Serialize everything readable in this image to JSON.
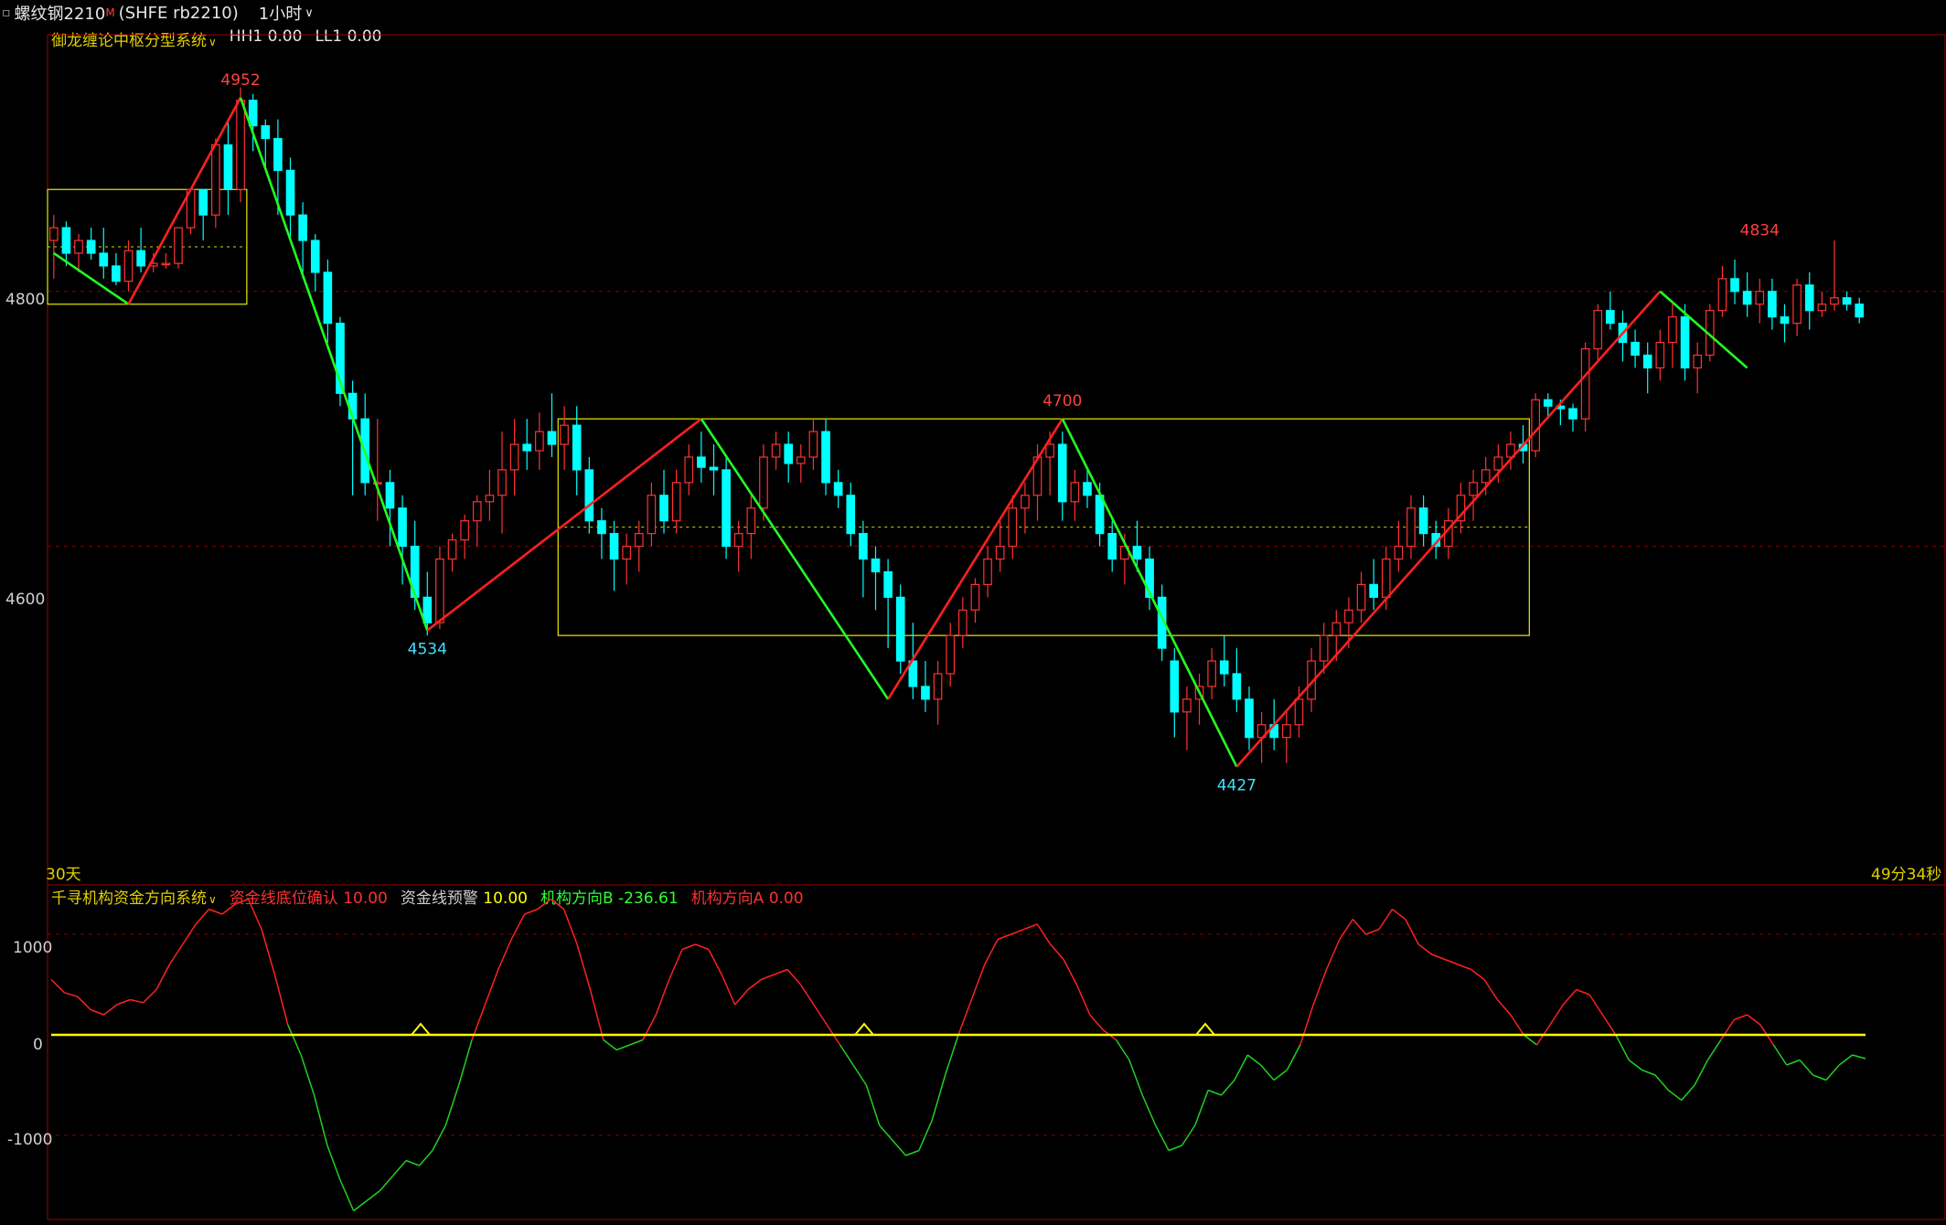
{
  "header": {
    "symbol": "螺纹钢2210",
    "badge": "M",
    "exchange_code": "(SHFE rb2210)",
    "period": "1小时"
  },
  "main_panel": {
    "indicator_name": "御龙缠论中枢分型系统",
    "hh1": "HH1 0.00",
    "ll1": "LL1 0.00",
    "axis_label_4800": "4800",
    "axis_label_4600": "4600",
    "range_label": "30天",
    "countdown": "49分34秒",
    "peak_labels": [
      "4952",
      "4534",
      "4700",
      "4427",
      "4834"
    ]
  },
  "sub_panel": {
    "indicator_name": "千寻机构资金方向系统",
    "items": [
      {
        "label": "资金线底位确认",
        "value": "10.00"
      },
      {
        "label": "资金线预警",
        "value": "10.00"
      },
      {
        "label": "机构方向B",
        "value": "-236.61"
      },
      {
        "label": "机构方向A",
        "value": "0.00"
      }
    ],
    "axis_labels": [
      "1000",
      "0",
      "-1000"
    ]
  },
  "colors": {
    "up": "#ff3232",
    "down": "#00ffff",
    "zigzag_up": "#ff2020",
    "zigzag_down": "#20ff20",
    "box": "#d8d800",
    "grid": "#8b0000",
    "flow_positive": "#ff2020",
    "flow_negative": "#20d020",
    "zero_line": "#ffff00"
  },
  "chart_data": [
    {
      "type": "candlestick",
      "title": "螺纹钢2210 (SHFE rb2210) 1小时",
      "ylim": [
        4340,
        5000
      ],
      "y_ticks": [
        4600,
        4800
      ],
      "ohlc": [
        [
          4840,
          4860,
          4810,
          4850
        ],
        [
          4850,
          4855,
          4820,
          4830
        ],
        [
          4830,
          4845,
          4815,
          4840
        ],
        [
          4840,
          4850,
          4825,
          4830
        ],
        [
          4830,
          4850,
          4810,
          4820
        ],
        [
          4820,
          4830,
          4805,
          4808
        ],
        [
          4808,
          4840,
          4800,
          4832
        ],
        [
          4832,
          4850,
          4815,
          4820
        ],
        [
          4820,
          4830,
          4815,
          4822
        ],
        [
          4822,
          4830,
          4818,
          4822
        ],
        [
          4822,
          4850,
          4818,
          4850
        ],
        [
          4850,
          4880,
          4845,
          4880
        ],
        [
          4880,
          4880,
          4840,
          4860
        ],
        [
          4860,
          4920,
          4850,
          4915
        ],
        [
          4915,
          4935,
          4860,
          4880
        ],
        [
          4880,
          4960,
          4870,
          4950
        ],
        [
          4950,
          4955,
          4910,
          4930
        ],
        [
          4930,
          4935,
          4895,
          4920
        ],
        [
          4920,
          4935,
          4860,
          4895
        ],
        [
          4895,
          4905,
          4840,
          4860
        ],
        [
          4860,
          4870,
          4810,
          4840
        ],
        [
          4840,
          4845,
          4800,
          4815
        ],
        [
          4815,
          4825,
          4760,
          4775
        ],
        [
          4775,
          4780,
          4710,
          4720
        ],
        [
          4720,
          4730,
          4640,
          4700
        ],
        [
          4700,
          4720,
          4640,
          4650
        ],
        [
          4650,
          4700,
          4620,
          4650
        ],
        [
          4650,
          4660,
          4600,
          4630
        ],
        [
          4630,
          4640,
          4570,
          4600
        ],
        [
          4600,
          4620,
          4550,
          4560
        ],
        [
          4560,
          4580,
          4530,
          4540
        ],
        [
          4540,
          4600,
          4535,
          4590
        ],
        [
          4590,
          4610,
          4580,
          4605
        ],
        [
          4605,
          4625,
          4590,
          4620
        ],
        [
          4620,
          4640,
          4600,
          4635
        ],
        [
          4635,
          4660,
          4620,
          4640
        ],
        [
          4640,
          4690,
          4610,
          4660
        ],
        [
          4660,
          4700,
          4640,
          4680
        ],
        [
          4680,
          4700,
          4660,
          4675
        ],
        [
          4675,
          4705,
          4660,
          4690
        ],
        [
          4690,
          4720,
          4670,
          4680
        ],
        [
          4680,
          4710,
          4660,
          4695
        ],
        [
          4695,
          4710,
          4640,
          4660
        ],
        [
          4660,
          4670,
          4610,
          4620
        ],
        [
          4620,
          4630,
          4590,
          4610
        ],
        [
          4610,
          4620,
          4565,
          4590
        ],
        [
          4590,
          4610,
          4570,
          4600
        ],
        [
          4600,
          4620,
          4580,
          4610
        ],
        [
          4610,
          4650,
          4600,
          4640
        ],
        [
          4640,
          4660,
          4610,
          4620
        ],
        [
          4620,
          4660,
          4610,
          4650
        ],
        [
          4650,
          4680,
          4640,
          4670
        ],
        [
          4670,
          4690,
          4650,
          4662
        ],
        [
          4662,
          4680,
          4640,
          4660
        ],
        [
          4660,
          4670,
          4590,
          4600
        ],
        [
          4600,
          4620,
          4580,
          4610
        ],
        [
          4610,
          4640,
          4590,
          4630
        ],
        [
          4630,
          4680,
          4620,
          4670
        ],
        [
          4670,
          4690,
          4660,
          4680
        ],
        [
          4680,
          4690,
          4650,
          4665
        ],
        [
          4665,
          4680,
          4650,
          4670
        ],
        [
          4670,
          4700,
          4660,
          4690
        ],
        [
          4690,
          4700,
          4640,
          4650
        ],
        [
          4650,
          4660,
          4630,
          4640
        ],
        [
          4640,
          4650,
          4600,
          4610
        ],
        [
          4610,
          4620,
          4560,
          4590
        ],
        [
          4590,
          4600,
          4550,
          4580
        ],
        [
          4580,
          4590,
          4520,
          4560
        ],
        [
          4560,
          4570,
          4500,
          4510
        ],
        [
          4510,
          4540,
          4480,
          4490
        ],
        [
          4490,
          4510,
          4470,
          4480
        ],
        [
          4480,
          4510,
          4460,
          4500
        ],
        [
          4500,
          4540,
          4490,
          4530
        ],
        [
          4530,
          4560,
          4520,
          4550
        ],
        [
          4550,
          4575,
          4540,
          4570
        ],
        [
          4570,
          4600,
          4560,
          4590
        ],
        [
          4590,
          4620,
          4580,
          4600
        ],
        [
          4600,
          4640,
          4590,
          4630
        ],
        [
          4630,
          4650,
          4610,
          4640
        ],
        [
          4640,
          4680,
          4620,
          4670
        ],
        [
          4670,
          4690,
          4640,
          4680
        ],
        [
          4680,
          4690,
          4620,
          4635
        ],
        [
          4635,
          4660,
          4620,
          4650
        ],
        [
          4650,
          4660,
          4630,
          4640
        ],
        [
          4640,
          4650,
          4600,
          4610
        ],
        [
          4610,
          4620,
          4580,
          4590
        ],
        [
          4590,
          4610,
          4570,
          4600
        ],
        [
          4600,
          4620,
          4580,
          4590
        ],
        [
          4590,
          4600,
          4550,
          4560
        ],
        [
          4560,
          4570,
          4510,
          4520
        ],
        [
          4510,
          4520,
          4450,
          4470
        ],
        [
          4470,
          4490,
          4440,
          4480
        ],
        [
          4480,
          4500,
          4460,
          4490
        ],
        [
          4490,
          4520,
          4480,
          4510
        ],
        [
          4510,
          4530,
          4490,
          4500
        ],
        [
          4500,
          4520,
          4470,
          4480
        ],
        [
          4480,
          4490,
          4440,
          4450
        ],
        [
          4450,
          4470,
          4430,
          4460
        ],
        [
          4460,
          4480,
          4440,
          4450
        ],
        [
          4450,
          4470,
          4430,
          4460
        ],
        [
          4460,
          4490,
          4450,
          4480
        ],
        [
          4480,
          4520,
          4470,
          4510
        ],
        [
          4510,
          4540,
          4500,
          4530
        ],
        [
          4530,
          4550,
          4510,
          4540
        ],
        [
          4540,
          4560,
          4520,
          4550
        ],
        [
          4550,
          4580,
          4540,
          4570
        ],
        [
          4570,
          4590,
          4550,
          4560
        ],
        [
          4560,
          4600,
          4550,
          4590
        ],
        [
          4590,
          4620,
          4580,
          4600
        ],
        [
          4600,
          4640,
          4590,
          4630
        ],
        [
          4630,
          4640,
          4600,
          4610
        ],
        [
          4610,
          4620,
          4590,
          4600
        ],
        [
          4600,
          4630,
          4590,
          4620
        ],
        [
          4620,
          4650,
          4610,
          4640
        ],
        [
          4640,
          4660,
          4620,
          4650
        ],
        [
          4650,
          4670,
          4640,
          4660
        ],
        [
          4660,
          4680,
          4650,
          4670
        ],
        [
          4670,
          4690,
          4660,
          4680
        ],
        [
          4680,
          4695,
          4665,
          4675
        ],
        [
          4675,
          4720,
          4670,
          4715
        ],
        [
          4715,
          4720,
          4700,
          4710
        ],
        [
          4710,
          4715,
          4695,
          4708
        ],
        [
          4708,
          4712,
          4690,
          4700
        ],
        [
          4700,
          4760,
          4690,
          4755
        ],
        [
          4755,
          4790,
          4745,
          4785
        ],
        [
          4785,
          4800,
          4770,
          4775
        ],
        [
          4775,
          4785,
          4745,
          4760
        ],
        [
          4760,
          4770,
          4740,
          4750
        ],
        [
          4750,
          4760,
          4720,
          4740
        ],
        [
          4740,
          4770,
          4730,
          4760
        ],
        [
          4760,
          4790,
          4740,
          4780
        ],
        [
          4780,
          4790,
          4730,
          4740
        ],
        [
          4740,
          4760,
          4720,
          4750
        ],
        [
          4750,
          4790,
          4745,
          4785
        ],
        [
          4785,
          4820,
          4780,
          4810
        ],
        [
          4810,
          4825,
          4790,
          4800
        ],
        [
          4800,
          4815,
          4780,
          4790
        ],
        [
          4790,
          4810,
          4775,
          4800
        ],
        [
          4800,
          4810,
          4770,
          4780
        ],
        [
          4780,
          4790,
          4760,
          4775
        ],
        [
          4775,
          4810,
          4765,
          4805
        ],
        [
          4805,
          4815,
          4770,
          4785
        ],
        [
          4785,
          4800,
          4780,
          4790
        ],
        [
          4790,
          4840,
          4785,
          4795
        ],
        [
          4795,
          4800,
          4785,
          4790
        ],
        [
          4790,
          4795,
          4775,
          4780
        ]
      ],
      "zigzag_pivots": [
        {
          "index": 0,
          "price": 4830
        },
        {
          "index": 6,
          "price": 4790
        },
        {
          "index": 15,
          "price": 4952
        },
        {
          "index": 30,
          "price": 4534
        },
        {
          "index": 52,
          "price": 4700
        },
        {
          "index": 67,
          "price": 4480
        },
        {
          "index": 81,
          "price": 4700
        },
        {
          "index": 95,
          "price": 4427
        },
        {
          "index": 129,
          "price": 4800
        },
        {
          "index": 136,
          "price": 4740
        }
      ],
      "zhongshu_boxes": [
        {
          "from_index": 0,
          "to_index": 15,
          "low": 4790,
          "high": 4880
        },
        {
          "from_index": 41,
          "to_index": 118,
          "low": 4530,
          "high": 4700
        }
      ],
      "peak_labels": [
        4952,
        4534,
        4700,
        4427,
        4834
      ]
    },
    {
      "type": "line",
      "title": "千寻机构资金方向系统",
      "ylim": [
        -1800,
        1400
      ],
      "y_ticks": [
        -1000,
        0,
        1000
      ],
      "series": [
        {
          "name": "资金线",
          "values": [
            550,
            420,
            380,
            250,
            200,
            300,
            350,
            320,
            450,
            700,
            900,
            1100,
            1250,
            1200,
            1300,
            1350,
            1050,
            600,
            100,
            -200,
            -600,
            -1100,
            -1450,
            -1750,
            -1650,
            -1550,
            -1400,
            -1250,
            -1300,
            -1150,
            -900,
            -500,
            -50,
            300,
            650,
            950,
            1200,
            1250,
            1350,
            1250,
            900,
            450,
            -50,
            -150,
            -100,
            -50,
            200,
            550,
            850,
            900,
            850,
            600,
            300,
            450,
            550,
            600,
            650,
            500,
            300,
            100,
            -100,
            -300,
            -500,
            -900,
            -1050,
            -1200,
            -1150,
            -850,
            -400,
            0,
            350,
            700,
            950,
            1000,
            1050,
            1100,
            900,
            750,
            500,
            200,
            50,
            -50,
            -250,
            -600,
            -900,
            -1150,
            -1100,
            -900,
            -550,
            -600,
            -450,
            -200,
            -300,
            -450,
            -350,
            -100,
            300,
            650,
            950,
            1150,
            1000,
            1050,
            1250,
            1150,
            900,
            800,
            750,
            700,
            650,
            550,
            350,
            200,
            0,
            -100,
            100,
            300,
            450,
            400,
            200,
            0,
            -250,
            -350,
            -400,
            -550,
            -650,
            -500,
            -250,
            -50,
            150,
            200,
            100,
            -100,
            -300,
            -250,
            -400,
            -450,
            -300,
            -200,
            -236.61
          ]
        },
        {
          "name": "机构方向A",
          "values": [
            0
          ]
        }
      ]
    }
  ]
}
